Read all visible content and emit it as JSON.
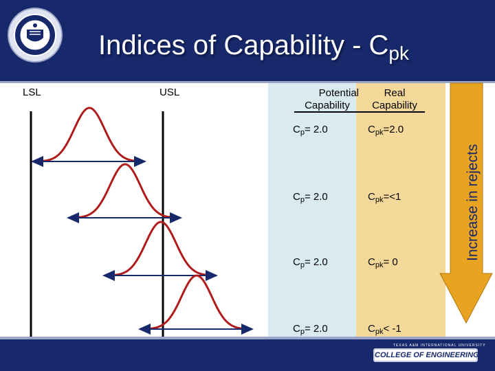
{
  "title": {
    "main": "Indices of Capability - C",
    "sub": "pk"
  },
  "labels": {
    "lsl": "LSL",
    "usl": "USL"
  },
  "columns": {
    "potential": {
      "line1": "Potential",
      "line2": "Capability"
    },
    "real": {
      "line1": "Real",
      "line2": "Capability"
    }
  },
  "rows": [
    {
      "cp_prefix": "C",
      "cp_sub": "p",
      "cp_value": "= 2.0",
      "cpk_prefix": "C",
      "cpk_sub": "pk",
      "cpk_value": "=2.0",
      "offset": 0
    },
    {
      "cp_prefix": "C",
      "cp_sub": "p",
      "cp_value": "= 2.0",
      "cpk_prefix": "C",
      "cpk_sub": "pk",
      "cpk_value": "=<1",
      "offset": 1
    },
    {
      "cp_prefix": "C",
      "cp_sub": "p",
      "cp_value": "= 2.0",
      "cpk_prefix": "C",
      "cpk_sub": "pk",
      "cpk_value": "= 0",
      "offset": 2
    },
    {
      "cp_prefix": "C",
      "cp_sub": "p",
      "cp_value": "= 2.0",
      "cpk_prefix": "C",
      "cpk_sub": "pk",
      "cpk_value": "< -1",
      "offset": 3
    }
  ],
  "arrow_label": "Increase in rejects",
  "footer": {
    "line1": "TEXAS A&M INTERNATIONAL UNIVERSITY",
    "logo": "COLLEGE OF ENGINEERING"
  },
  "colors": {
    "curve": "#b01c1c",
    "axis": "#17296b",
    "header": "#17296b",
    "arrow": "#e8a320"
  }
}
